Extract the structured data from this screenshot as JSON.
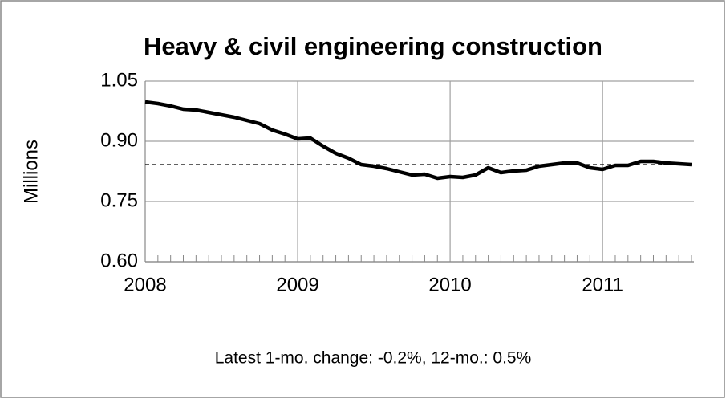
{
  "chart_data": {
    "type": "line",
    "title": "Heavy & civil engineering construction",
    "y_label": "Millions",
    "annotation": "Latest 1-mo. change: -0.2%, 12-mo.: 0.5%",
    "categories": [
      "2008",
      null,
      null,
      null,
      null,
      null,
      null,
      null,
      null,
      null,
      null,
      null,
      "2009",
      null,
      null,
      null,
      null,
      null,
      null,
      null,
      null,
      null,
      null,
      null,
      "2010",
      null,
      null,
      null,
      null,
      null,
      null,
      null,
      null,
      null,
      null,
      null,
      "2011",
      null,
      null,
      null,
      null,
      null,
      null,
      null
    ],
    "series": [
      {
        "name": "Heavy & civil engineering construction",
        "color": "#000000",
        "values": [
          0.998,
          0.994,
          0.988,
          0.98,
          0.978,
          0.972,
          0.966,
          0.96,
          0.952,
          0.944,
          0.928,
          0.918,
          0.906,
          0.908,
          0.888,
          0.87,
          0.858,
          0.842,
          0.838,
          0.832,
          0.824,
          0.816,
          0.818,
          0.808,
          0.812,
          0.81,
          0.816,
          0.834,
          0.822,
          0.826,
          0.828,
          0.838,
          0.842,
          0.846,
          0.846,
          0.834,
          0.83,
          0.84,
          0.84,
          0.85,
          0.85,
          0.846,
          0.844,
          0.842
        ]
      }
    ],
    "reference_line": 0.842,
    "ylim": [
      0.6,
      1.05
    ],
    "yticks": [
      {
        "value": 0.6,
        "label": "0.60"
      },
      {
        "value": 0.75,
        "label": "0.75"
      },
      {
        "value": 0.9,
        "label": "0.90"
      },
      {
        "value": 1.05,
        "label": "1.05"
      }
    ],
    "grid": true
  }
}
